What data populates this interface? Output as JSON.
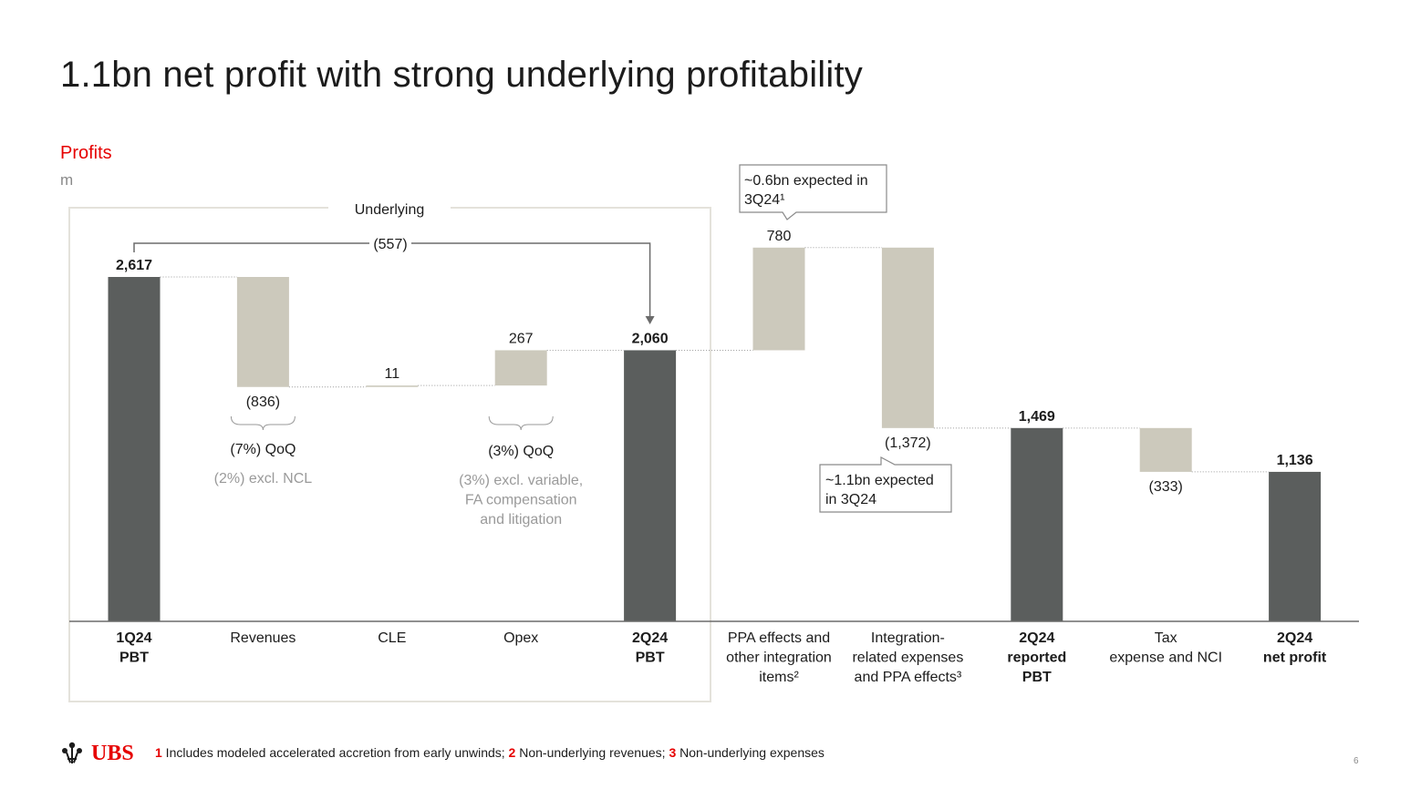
{
  "title": "1.1bn net profit with strong underlying profitability",
  "subtitle": "Profits",
  "unit": "m",
  "underlying_label": "Underlying",
  "bracket_change_label": "(557)",
  "callouts": {
    "ppa": [
      "~0.6bn expected in",
      "3Q24¹"
    ],
    "integration": [
      "~1.1bn expected",
      "in 3Q24"
    ]
  },
  "annotations": {
    "revenues": {
      "line1": "(7%) QoQ",
      "line2": "(2%) excl. NCL"
    },
    "opex": {
      "line1": "(3%) QoQ",
      "line2": [
        "(3%) excl. variable,",
        "FA compensation",
        "and litigation"
      ]
    }
  },
  "colors": {
    "total": "#5b5e5d",
    "delta": "#ccc9bc",
    "accent": "#e60000"
  },
  "chart_data": {
    "type": "waterfall",
    "title": "Profits",
    "ylabel": "m",
    "ylim": [
      0,
      2900
    ],
    "bars": [
      {
        "category": [
          "1Q24",
          "PBT"
        ],
        "kind": "total",
        "value": 2617,
        "label": "2,617",
        "bold": true,
        "start": 0,
        "end": 2617
      },
      {
        "category": [
          "Revenues"
        ],
        "kind": "delta",
        "value": -836,
        "label": "(836)",
        "bold": false,
        "start": 2617,
        "end": 1781
      },
      {
        "category": [
          "CLE"
        ],
        "kind": "delta",
        "value": 11,
        "label": "11",
        "bold": false,
        "start": 1781,
        "end": 1792
      },
      {
        "category": [
          "Opex"
        ],
        "kind": "delta",
        "value": 267,
        "label": "267",
        "bold": false,
        "start": 1792,
        "end": 2060
      },
      {
        "category": [
          "2Q24",
          "PBT"
        ],
        "kind": "total",
        "value": 2060,
        "label": "2,060",
        "bold": true,
        "start": 0,
        "end": 2060
      },
      {
        "category": [
          "PPA effects and",
          "other integration",
          "items²"
        ],
        "kind": "delta",
        "value": 780,
        "label": "780",
        "bold": false,
        "start": 2060,
        "end": 2840
      },
      {
        "category": [
          "Integration-",
          "related expenses",
          "and PPA effects³"
        ],
        "kind": "delta",
        "value": -1372,
        "label": "(1,372)",
        "bold": false,
        "start": 2840,
        "end": 1469
      },
      {
        "category": [
          "2Q24",
          "reported",
          "PBT"
        ],
        "kind": "total",
        "value": 1469,
        "label": "1,469",
        "bold": true,
        "start": 0,
        "end": 1469
      },
      {
        "category": [
          "Tax",
          "expense and NCI"
        ],
        "kind": "delta",
        "value": -333,
        "label": "(333)",
        "bold": false,
        "start": 1469,
        "end": 1136
      },
      {
        "category": [
          "2Q24",
          "net profit"
        ],
        "kind": "total",
        "value": 1136,
        "label": "1,136",
        "bold": true,
        "start": 0,
        "end": 1136
      }
    ]
  },
  "footer": {
    "logo_text": "UBS",
    "notes": [
      {
        "num": "1",
        "text": " Includes modeled accelerated accretion from early unwinds; "
      },
      {
        "num": "2",
        "text": " Non-underlying revenues; "
      },
      {
        "num": "3",
        "text": " Non-underlying expenses"
      }
    ],
    "page_number": "6"
  }
}
